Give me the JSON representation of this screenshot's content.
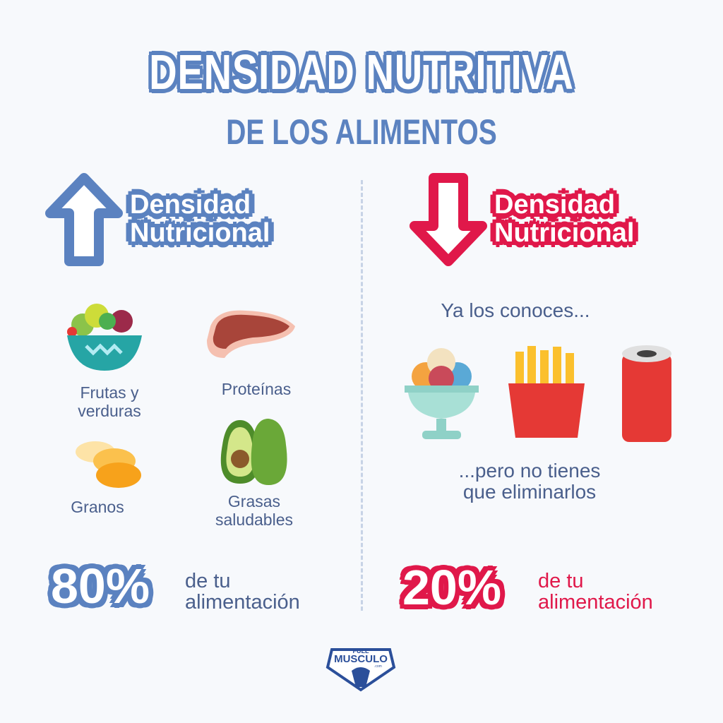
{
  "title": {
    "line1": "DENSIDAD NUTRITIVA",
    "line2": "DE LOS ALIMENTOS"
  },
  "colors": {
    "blue": "#5b82c0",
    "red": "#e0184a",
    "text": "#4a5f8c"
  },
  "left": {
    "icon": "arrow-up-icon",
    "badge": {
      "line1": "Densidad",
      "line2": "Nutricional"
    },
    "foods": [
      {
        "icon": "salad-bowl-icon",
        "line1": "Frutas y",
        "line2": "verduras"
      },
      {
        "icon": "steak-icon",
        "line1": "Proteínas"
      },
      {
        "icon": "beans-icon",
        "line1": "Granos"
      },
      {
        "icon": "avocado-icon",
        "line1": "Grasas",
        "line2": "saludables"
      }
    ],
    "percent": "80%",
    "percent_text": {
      "line1": "de tu",
      "line2": "alimentación"
    }
  },
  "right": {
    "icon": "arrow-down-icon",
    "badge": {
      "line1": "Densidad",
      "line2": "Nutricional"
    },
    "intro": "Ya los conoces...",
    "foods": [
      {
        "icon": "ice-cream-icon"
      },
      {
        "icon": "fries-icon"
      },
      {
        "icon": "soda-can-icon"
      }
    ],
    "outro": {
      "line1": "...pero no tienes",
      "line2": "que eliminarlos"
    },
    "percent": "20%",
    "percent_text": {
      "line1": "de tu",
      "line2": "alimentación"
    }
  },
  "logo": {
    "line1": "FULL",
    "line2": "MUSCULO",
    "suffix": ".com"
  }
}
